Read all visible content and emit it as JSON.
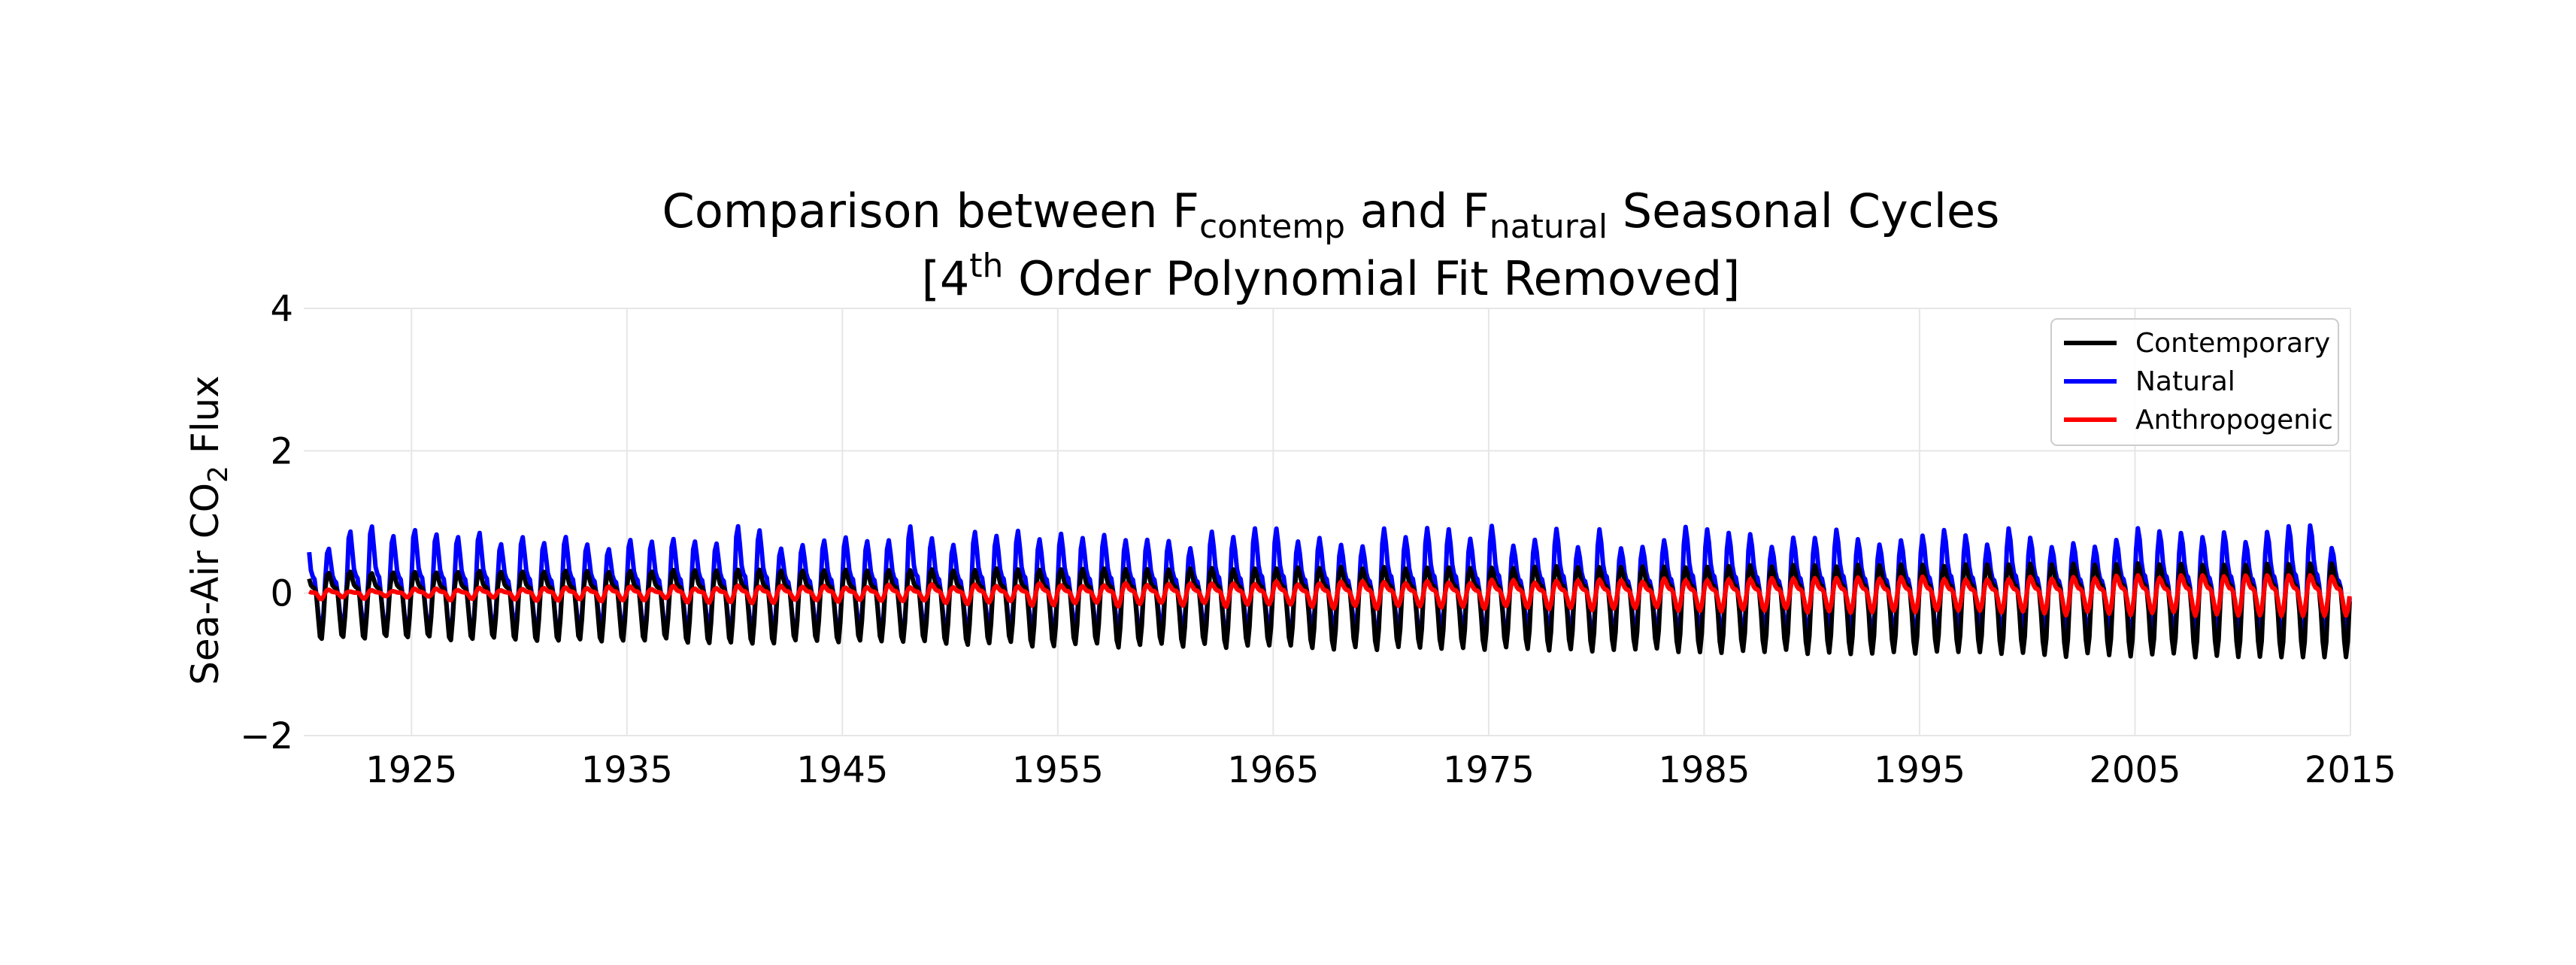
{
  "chart_data": {
    "type": "line",
    "title": {
      "line1_prefix": "Comparison between F",
      "line1_sub1": "contemp",
      "line1_mid": " and F",
      "line1_sub2": "natural",
      "line1_suffix": " Seasonal Cycles",
      "line2_prefix": "[4",
      "line2_sup": "th",
      "line2_suffix": " Order Polynomial Fit Removed]"
    },
    "ylabel": {
      "prefix": "Sea-Air CO",
      "sub": "2",
      "suffix": " Flux"
    },
    "xlabel": "",
    "xlim": [
      1920,
      2015
    ],
    "ylim": [
      -2,
      4
    ],
    "x_ticks": [
      1925,
      1935,
      1945,
      1955,
      1965,
      1975,
      1985,
      1995,
      2005,
      2015
    ],
    "x_tick_labels": [
      "1925",
      "1935",
      "1945",
      "1955",
      "1965",
      "1975",
      "1985",
      "1995",
      "2005",
      "2015"
    ],
    "y_ticks": [
      -2,
      0,
      2,
      4
    ],
    "y_tick_labels": [
      "−2",
      "0",
      "2",
      "4"
    ],
    "grid": true,
    "legend_position": "top-right",
    "x_step": 0.0833,
    "series_envelopes": [
      {
        "name": "Contemporary",
        "color": "#000000",
        "max_range": [
          0.35,
          0.5
        ],
        "min_range": [
          -0.6,
          -0.85
        ]
      },
      {
        "name": "Natural",
        "color": "#0000ff",
        "max_range": [
          0.75,
          1.15
        ],
        "min_range": [
          -0.6,
          -0.45
        ]
      },
      {
        "name": "Anthropogenic",
        "color": "#ff0000",
        "max_range": [
          0.05,
          0.3
        ],
        "min_range": [
          -0.05,
          -0.3
        ]
      }
    ],
    "series": [
      {
        "name": "Contemporary",
        "color": "#000000"
      },
      {
        "name": "Natural",
        "color": "#0000ff"
      },
      {
        "name": "Anthropogenic",
        "color": "#ff0000"
      }
    ]
  }
}
